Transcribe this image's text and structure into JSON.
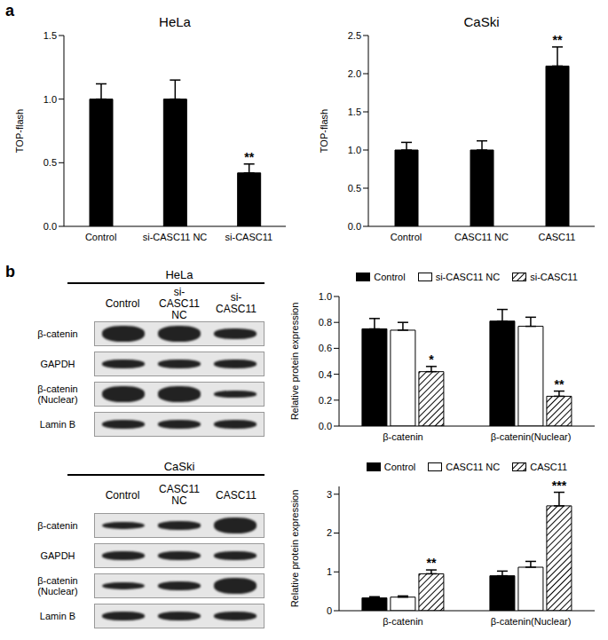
{
  "panel_labels": [
    "a",
    "b"
  ],
  "chart_data": [
    {
      "type": "bar",
      "title": "HeLa",
      "y_label": "TOP-flash",
      "categories": [
        "Control",
        "si-CASC11 NC",
        "si-CASC11"
      ],
      "values": [
        1.0,
        1.0,
        0.42
      ],
      "errors": [
        0.12,
        0.15,
        0.07
      ],
      "significance": [
        null,
        null,
        "**"
      ],
      "color": "#000000",
      "ylim": [
        0,
        1.5
      ],
      "yticks": [
        {
          "value": 0,
          "label": "0.0"
        },
        0.5,
        {
          "value": 1,
          "label": "1.0"
        },
        1.5
      ]
    },
    {
      "type": "bar",
      "title": "CaSki",
      "y_label": "TOP-flash",
      "categories": [
        "Control",
        "CASC11 NC",
        "CASC11"
      ],
      "values": [
        1.0,
        1.0,
        2.1
      ],
      "errors": [
        0.1,
        0.12,
        0.25
      ],
      "significance": [
        null,
        null,
        "**"
      ],
      "color": "#000000",
      "ylim": [
        0,
        2.5
      ],
      "yticks": [
        {
          "value": 0,
          "label": "0.0"
        },
        0.5,
        {
          "value": 1,
          "label": "1.0"
        },
        1.5,
        {
          "value": 2,
          "label": "2.0"
        },
        2.5
      ]
    },
    {
      "type": "bar",
      "y_label": "Relative  protein expression",
      "categories": [
        "β-catenin",
        "β-catenin(Nuclear)"
      ],
      "legend": "top",
      "ylim": [
        0,
        1
      ],
      "yticks": [
        {
          "value": 0,
          "label": "0.0"
        },
        0.2,
        0.4,
        0.6,
        0.8,
        {
          "value": 1,
          "label": "1.0"
        }
      ],
      "series": [
        {
          "name": "Control",
          "color": "#000000",
          "values": [
            0.75,
            0.81
          ],
          "errors": [
            0.08,
            0.09
          ],
          "significance": [
            null,
            null
          ]
        },
        {
          "name": "si-CASC11 NC",
          "color": "#ffffff",
          "values": [
            0.74,
            0.77
          ],
          "errors": [
            0.06,
            0.07
          ],
          "significance": [
            null,
            null
          ]
        },
        {
          "name": "si-CASC11",
          "color": "#000000",
          "values": [
            0.42,
            0.23
          ],
          "errors": [
            0.04,
            0.04
          ],
          "significance": [
            "*",
            "**"
          ]
        }
      ]
    },
    {
      "type": "bar",
      "y_label": "Relative  protein expression",
      "categories": [
        "β-catenin",
        "β-catenin(Nuclear)"
      ],
      "legend": "top",
      "ylim": [
        0,
        3.2
      ],
      "yticks": [
        0,
        1,
        2,
        3
      ],
      "series": [
        {
          "name": "Control",
          "color": "#000000",
          "values": [
            0.33,
            0.9
          ],
          "errors": [
            0.03,
            0.12
          ],
          "significance": [
            null,
            null
          ]
        },
        {
          "name": "CASC11 NC",
          "color": "#ffffff",
          "values": [
            0.35,
            1.12
          ],
          "errors": [
            0.03,
            0.15
          ],
          "significance": [
            null,
            null
          ]
        },
        {
          "name": "CASC11",
          "color": "#000000",
          "values": [
            0.95,
            2.7
          ],
          "errors": [
            0.1,
            0.35
          ],
          "significance": [
            "**",
            "***"
          ]
        }
      ]
    }
  ],
  "blots": [
    {
      "title": "HeLa",
      "lanes": [
        "Control",
        "si-CASC11 NC",
        "si-CASC11"
      ],
      "rows": [
        "β-catenin",
        "GAPDH",
        "β-catenin (Nuclear)",
        "Lamin B"
      ]
    },
    {
      "title": "CaSki",
      "lanes": [
        "Control",
        "CASC11 NC",
        "CASC11"
      ],
      "rows": [
        "β-catenin",
        "GAPDH",
        "β-catenin (Nuclear)",
        "Lamin B"
      ]
    }
  ]
}
